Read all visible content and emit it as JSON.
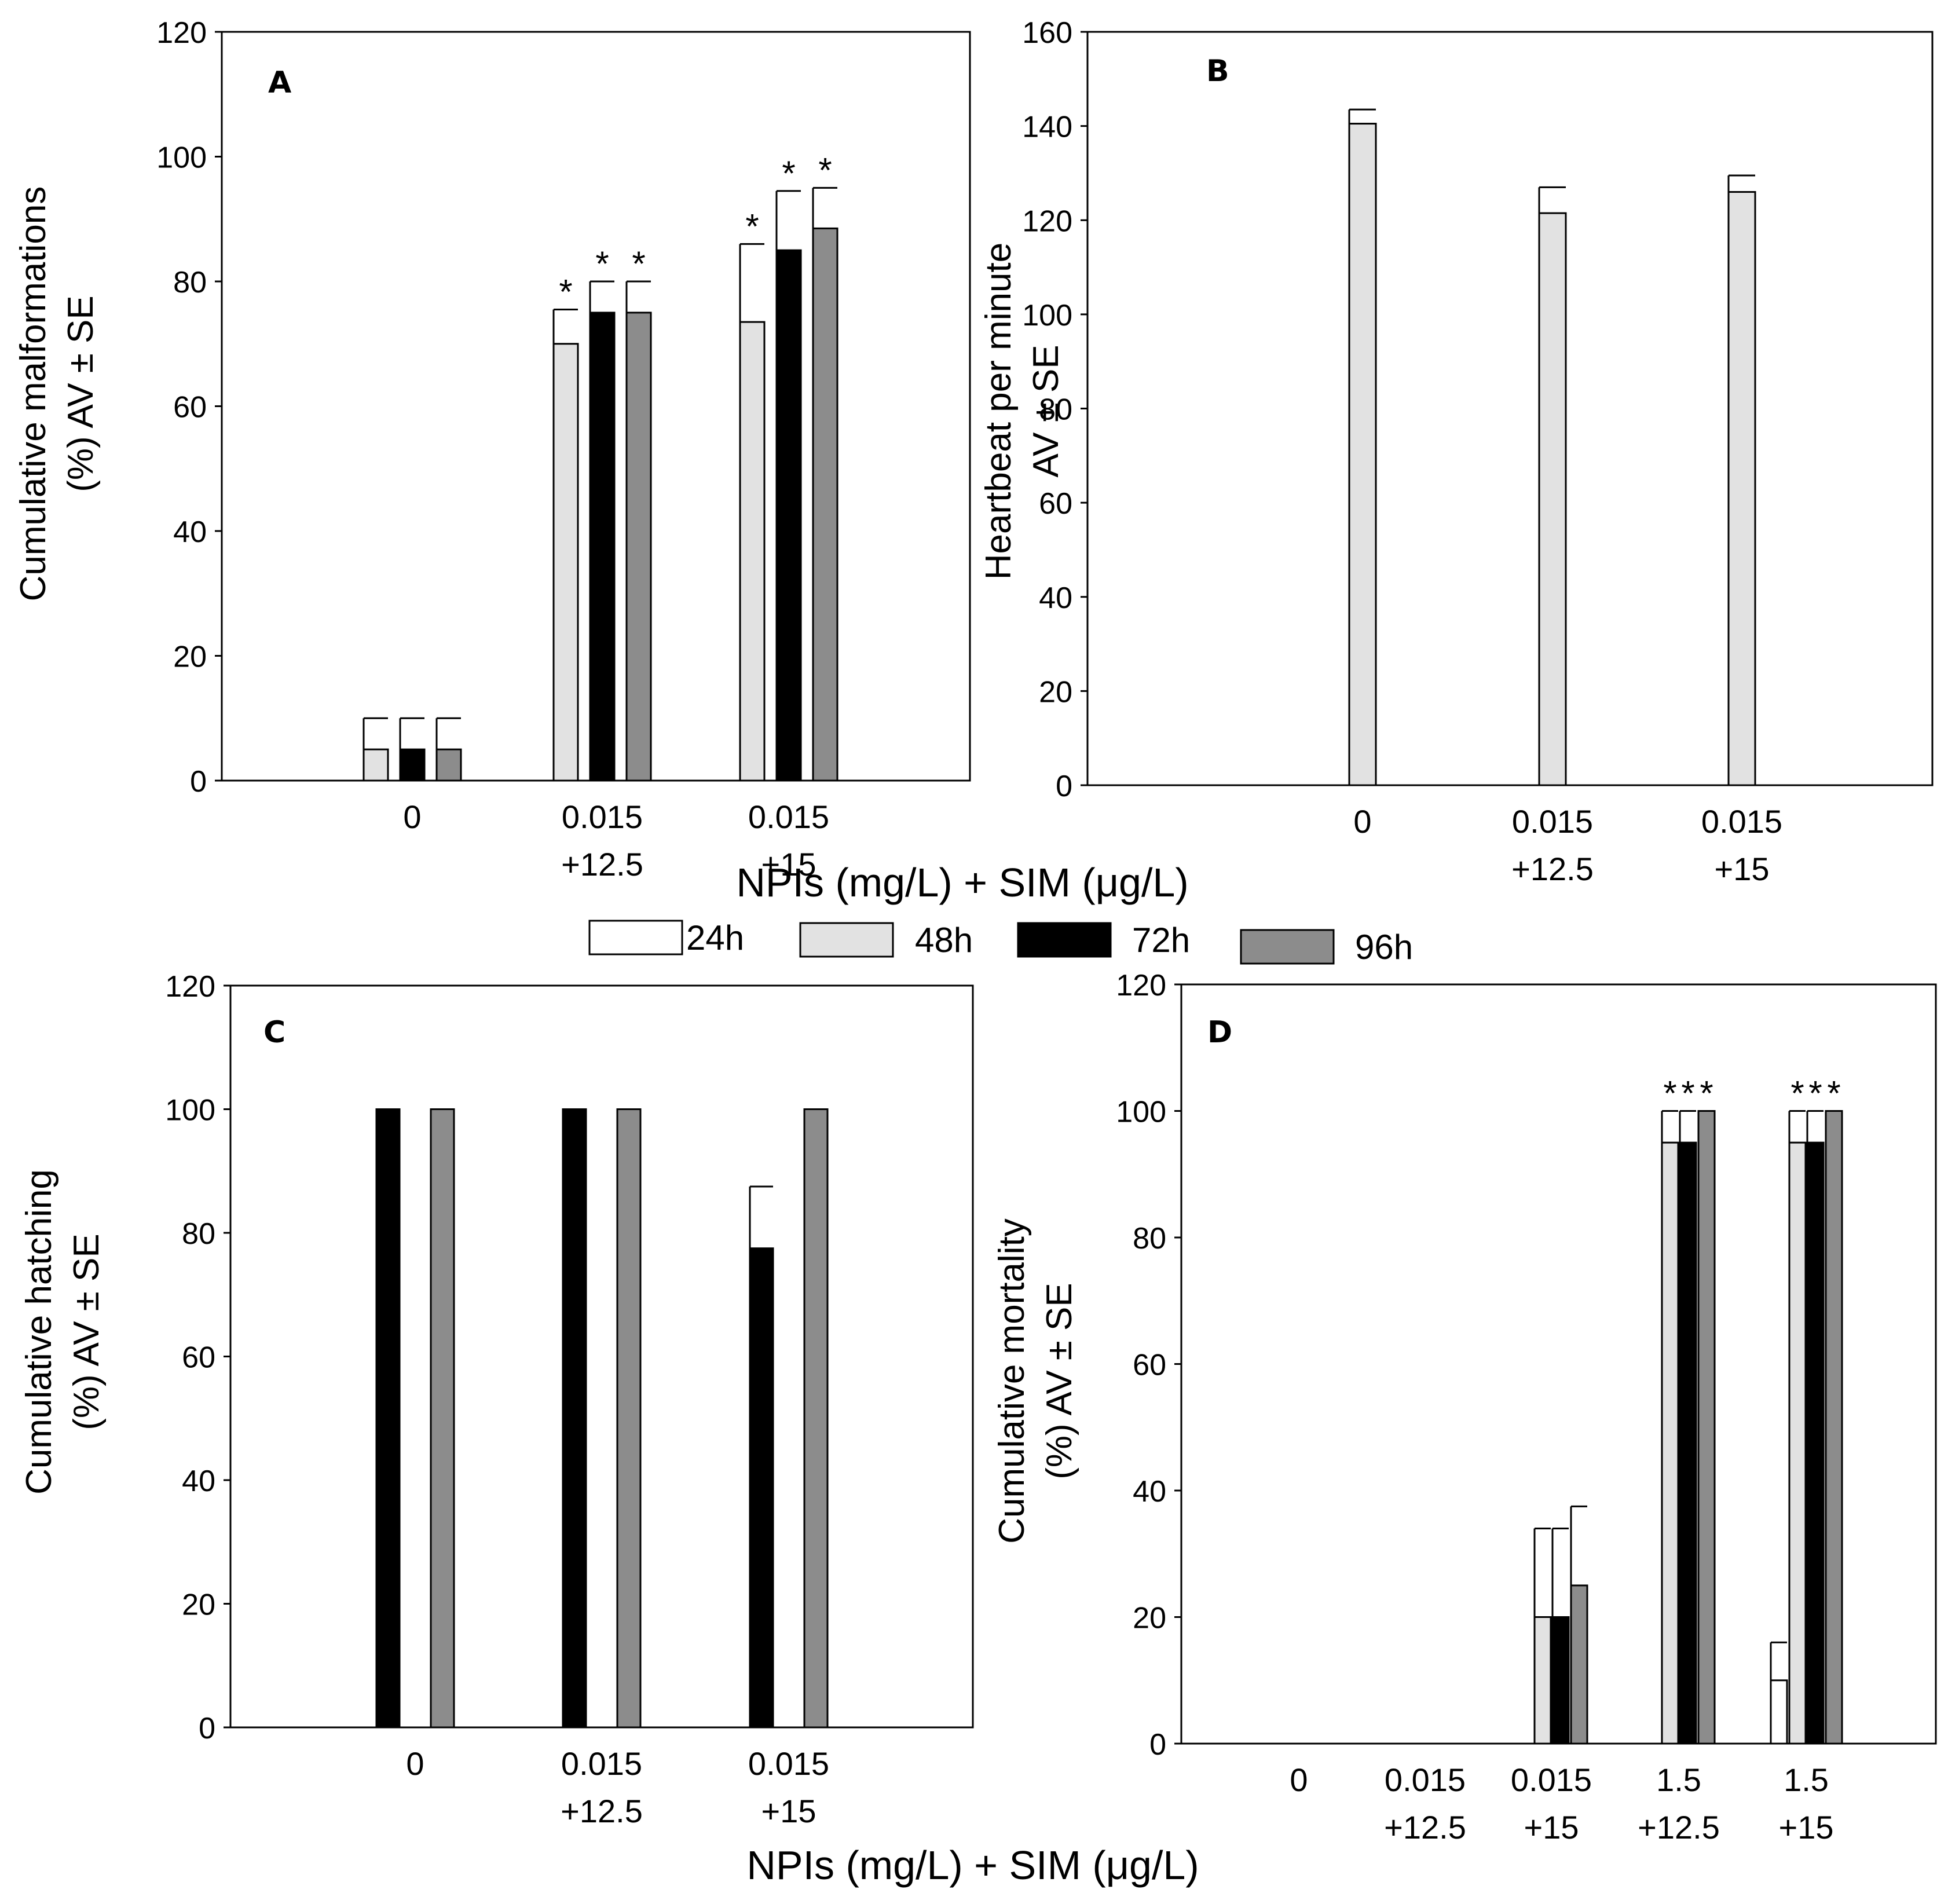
{
  "colors": {
    "24h": "#ffffff",
    "48h": "#e2e2e2",
    "72h": "#000000",
    "96h": "#8c8c8c",
    "axis": "#000000"
  },
  "legend": [
    {
      "key": "24h",
      "label": "24h"
    },
    {
      "key": "48h",
      "label": "48h"
    },
    {
      "key": "72h",
      "label": "72h"
    },
    {
      "key": "96h",
      "label": "96h"
    }
  ],
  "shared_xlabel_top": "NPIs (mg/L) + SIM (μg/L)",
  "shared_xlabel_bottom": "NPIs (mg/L) + SIM (μg/L)",
  "chart_data": [
    {
      "id": "A",
      "type": "bar",
      "panel_label": "A",
      "ylabel": [
        "Cumulative malformations",
        "(%) AV ± SE"
      ],
      "ylim": [
        0,
        120
      ],
      "yticks": [
        0,
        20,
        40,
        60,
        80,
        100,
        120
      ],
      "categories": [
        [
          "0"
        ],
        [
          "0.015",
          "+12.5"
        ],
        [
          "0.015",
          "+15"
        ]
      ],
      "series": [
        {
          "name": "48h",
          "values": [
            5,
            70,
            73.5
          ],
          "errors": [
            5,
            5.5,
            12.5
          ],
          "stars": [
            "",
            "*",
            "*"
          ]
        },
        {
          "name": "72h",
          "values": [
            5,
            75,
            85
          ],
          "errors": [
            5,
            5,
            9.5
          ],
          "stars": [
            "",
            "*",
            "*"
          ]
        },
        {
          "name": "96h",
          "values": [
            5,
            75,
            88.5
          ],
          "errors": [
            5,
            5,
            6.5
          ],
          "stars": [
            "",
            "*",
            "*"
          ]
        }
      ]
    },
    {
      "id": "B",
      "type": "bar",
      "panel_label": "B",
      "ylabel": [
        "Heartbeat per minute",
        "AV ± SE"
      ],
      "ylim": [
        0,
        160
      ],
      "yticks": [
        0,
        20,
        40,
        60,
        80,
        100,
        120,
        140,
        160
      ],
      "categories": [
        [
          "0"
        ],
        [
          "0.015",
          "+12.5"
        ],
        [
          "0.015",
          "+15"
        ]
      ],
      "series": [
        {
          "name": "48h",
          "values": [
            140.5,
            121.5,
            126
          ],
          "errors": [
            3,
            5.5,
            3.5
          ],
          "stars": [
            "",
            "",
            ""
          ]
        }
      ]
    },
    {
      "id": "C",
      "type": "bar",
      "panel_label": "C",
      "ylabel": [
        "Cumulative hatching",
        "(%) AV ± SE"
      ],
      "ylim": [
        0,
        120
      ],
      "yticks": [
        0,
        20,
        40,
        60,
        80,
        100,
        120
      ],
      "categories": [
        [
          "0"
        ],
        [
          "0.015",
          "+12.5"
        ],
        [
          "0.015",
          "+15"
        ]
      ],
      "series": [
        {
          "name": "72h",
          "values": [
            100,
            100,
            77.5
          ],
          "errors": [
            0,
            0,
            10
          ],
          "stars": [
            "",
            "",
            ""
          ]
        },
        {
          "name": "96h",
          "values": [
            100,
            100,
            100
          ],
          "errors": [
            0,
            0,
            0
          ],
          "stars": [
            "",
            "",
            ""
          ]
        }
      ]
    },
    {
      "id": "D",
      "type": "bar",
      "panel_label": "D",
      "ylabel": [
        "Cumulative mortality",
        "(%) AV ± SE"
      ],
      "ylim": [
        0,
        120
      ],
      "yticks": [
        0,
        20,
        40,
        60,
        80,
        100,
        120
      ],
      "categories": [
        [
          "0"
        ],
        [
          "0.015",
          "+12.5"
        ],
        [
          "0.015",
          "+15"
        ],
        [
          "1.5",
          "+12.5"
        ],
        [
          "1.5",
          "+15"
        ]
      ],
      "series": [
        {
          "name": "24h",
          "values": [
            0,
            0,
            0,
            0,
            10
          ],
          "errors": [
            0,
            0,
            0,
            0,
            6
          ],
          "stars": [
            "",
            "",
            "",
            "",
            ""
          ]
        },
        {
          "name": "48h",
          "values": [
            0,
            0,
            20,
            95,
            95
          ],
          "errors": [
            0,
            0,
            14,
            5,
            5
          ],
          "stars": [
            "",
            "",
            "",
            "*",
            "*"
          ]
        },
        {
          "name": "72h",
          "values": [
            0,
            0,
            20,
            95,
            95
          ],
          "errors": [
            0,
            0,
            14,
            5,
            5
          ],
          "stars": [
            "",
            "",
            "",
            "*",
            "*"
          ]
        },
        {
          "name": "96h",
          "values": [
            0,
            0,
            25,
            100,
            100
          ],
          "errors": [
            0,
            0,
            12.5,
            0,
            0
          ],
          "stars": [
            "",
            "",
            "",
            "*",
            "*"
          ]
        }
      ]
    }
  ]
}
